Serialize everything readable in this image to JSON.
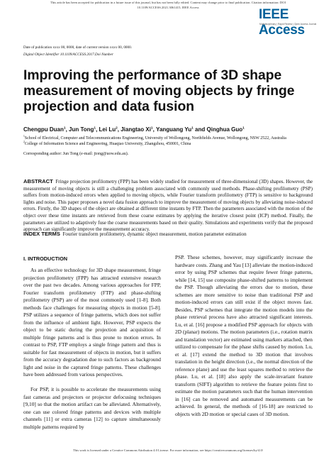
{
  "header": {
    "notice": [
      "This article has been accepted for publication in a future issue of this journal, but has not been fully edited. Content may change prior to final publication. Citation information: DOI",
      "10.1109/ACCESS.2021.3061415, IEEE Access"
    ],
    "logo": "IEEE Access",
    "tagline": "Multidisciplinary | Rapid Review | Open Access Journal"
  },
  "dates": "Date of publication xxxx 00, 0000, date of current version xxxx 00, 0000.",
  "doi": "Digital Object Identifier 10.1109/ACCESS.2017.Doi Number",
  "title": "Improving the performance of 3D shape measurement of moving objects by fringe projection and data fusion",
  "authors": [
    {
      "name": "Chengpu Duan",
      "aff": "1"
    },
    {
      "name": "Jun Tong",
      "aff": "1"
    },
    {
      "name": "Lei Lu",
      "aff": "2"
    },
    {
      "name": "Jiangtao Xi",
      "aff": "1"
    },
    {
      "name": "Yanguang Yu",
      "aff": "1"
    },
    {
      "name": "and Qinghua Guo",
      "aff": "1"
    }
  ],
  "affiliations": [
    {
      "mark": "1",
      "text": "School of Electrical, Computer and Telecommunications Engineering, University of Wollongong, Northfields Avenue, Wollongong, NSW 2522, Australia"
    },
    {
      "mark": "2",
      "text": "College of Information Science and Engineering, Huaqiao University, Zhangzhou, 450001, China"
    }
  ],
  "corresponding": "Corresponding author: Jun Tong (e-mail: jtong@uow.edu.au).",
  "abstract": {
    "label": "ABSTRACT",
    "text": "Fringe projection profilometry (FPP) has been widely studied for measurement of three-dimensional (3D) shapes. However, the measurement of moving objects is still a challenging problem associated with commonly used methods. Phase-shifting profilometry (PSP) suffers from motion-induced errors when applied to moving objects, while Fourier transform profilometry (FTP) is sensitive to background lights and noise. This paper proposes a novel data fusion approach to improve the measurement of moving objects by alleviating noise-induced errors. Firstly, the 3D shapes of the object are obtained at different time instants by FTP. Then the parameters associated with the motion of the object over these time instants are retrieved from these coarse estimates by applying the iterative closest point (ICP) method. Finally, the parameters are utilized to adaptively fuse the coarse measurements based on their quality. Simulations and experiments verify that the proposed approach can significantly improve the measurement accuracy."
  },
  "index_terms": {
    "label": "INDEX TERMS",
    "text": "Fourier transform profilometry, dynamic object measurement, motion parameter estimation"
  },
  "section": {
    "heading": "I. INTRODUCTION",
    "left": [
      "As an effective technology for 3D shape measurement, fringe projection profilometry (FPP) has attracted extensive research over the past two decades. Among various approaches for FPP, Fourier transform profilometry (FTP) and phase-shifting profilometry (PSP) are of the most commonly used [1-8]. Both methods face challenges for measuring objects in motion [5-8]. PSP utilizes a sequence of fringe patterns, which does not suffer from the influence of ambient light. However, PSP expects the object to be static during the projection and acquisition of multiple fringe patterns and is thus prone to motion errors. In contrast to PSP, FTP employs a single fringe pattern and thus is suitable for fast measurement of objects in motion, but it suffers from the accuracy degradation due to such factors as background light and noise in the captured fringe patterns. These challenges have been addressed from various perspectives.",
      "For PSP, it is possible to accelerate the measurements using fast cameras and projectors or projector defocusing techniques [9,10] so that the motion artifact can be alleviated. Alternatively, one can use colored fringe patterns and devices with multiple channels [11] or extra cameras [12] to capture simultaneously multiple patterns required by"
    ],
    "right": [
      "PSP. These schemes, however, may significantly increase the hardware costs. Zhang and Yau [13] alleviate the motion-induced error by using PSP schemes that require fewer fringe patterns, while [14, 15] use composite phase-shifted patterns to implement the PSP. Though alleviating the errors due to motion, these schemes are more sensitive to noise than traditional PSP and motion-induced errors can still exist if the object moves fast. Besides, PSP schemes that integrate the motion models into the phase retrieval process have also attracted significant interests. Lu, et al. [16] propose a modified PSP approach for objects with 2D (planar) motions. The motion parameters (i.e., rotation matrix and translation vector) are estimated using markers attached, then utilized to compensate for the phase shifts caused by motion. Lu, et al. [17] extend the method to 3D motion that involves translation in the height direction (i.e., the normal direction of the reference plane) and use the least squares method to retrieve the phase. Lu, et al. [18] also apply the scale-invariant feature transform (SIFT) algorithm to retrieve the feature points first to estimate the motion parameters such that the human intervention in [16] can be removed and automated measurements can be achieved. In general, the methods of [16-18] are restricted to objects with 2D motion or special cases of 3D motion."
    ]
  },
  "footer": "This work is licensed under a Creative Commons Attribution 4.0 License. For more information, see https://creativecommons.org/licenses/by/4.0/"
}
